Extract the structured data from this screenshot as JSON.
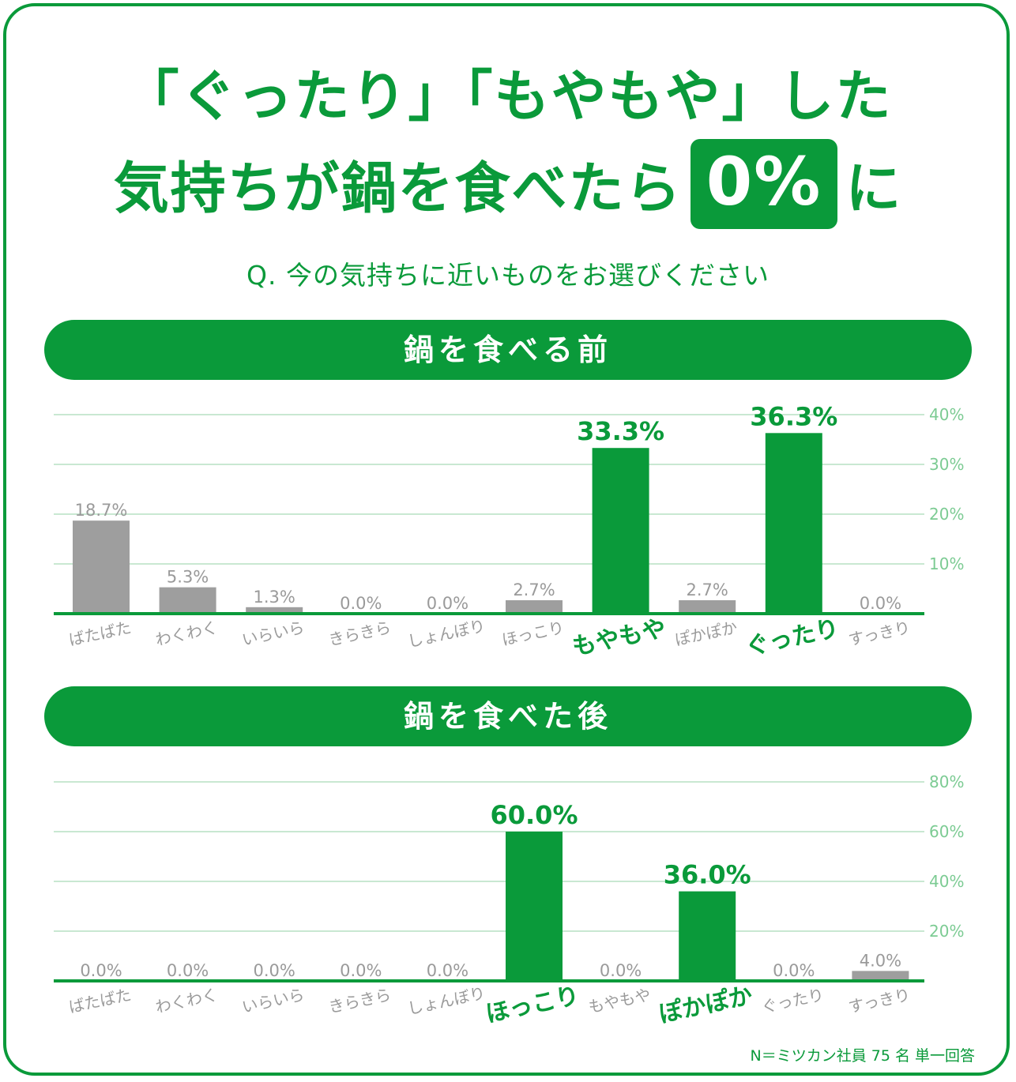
{
  "title": {
    "line1": "「ぐったり」「もやもや」した",
    "line2_pre": "気持ちが鍋を食べたら",
    "line2_highlight": "0%",
    "line2_post": "に"
  },
  "question": "Q. 今の気持ちに近いものをお選びください",
  "footnote": "N＝ミツカン社員 75 名 単一回答",
  "colors": {
    "accent": "#0a9a3a",
    "gray_bar": "#9e9e9e",
    "gray_text": "#9a9a9a",
    "gridline": "#c9e8d2",
    "axis_text": "#7ccb93"
  },
  "chart_data": [
    {
      "type": "bar",
      "title": "鍋を食べる前",
      "categories": [
        "ばたばた",
        "わくわく",
        "いらいら",
        "きらきら",
        "しょんぼり",
        "ほっこり",
        "もやもや",
        "ぽかぽか",
        "ぐったり",
        "すっきり"
      ],
      "values": [
        18.7,
        5.3,
        1.3,
        0.0,
        0.0,
        2.7,
        33.3,
        2.7,
        36.3,
        0.0
      ],
      "value_labels": [
        "18.7%",
        "5.3%",
        "1.3%",
        "0.0%",
        "0.0%",
        "2.7%",
        "33.3%",
        "2.7%",
        "36.3%",
        "0.0%"
      ],
      "highlighted": [
        "もやもや",
        "ぐったり"
      ],
      "ylim": [
        0,
        40
      ],
      "yticks": [
        10,
        20,
        30,
        40
      ],
      "ytick_labels": [
        "10%",
        "20%",
        "30%",
        "40%"
      ],
      "grid": true
    },
    {
      "type": "bar",
      "title": "鍋を食べた後",
      "categories": [
        "ばたばた",
        "わくわく",
        "いらいら",
        "きらきら",
        "しょんぼり",
        "ほっこり",
        "もやもや",
        "ぽかぽか",
        "ぐったり",
        "すっきり"
      ],
      "values": [
        0.0,
        0.0,
        0.0,
        0.0,
        0.0,
        60.0,
        0.0,
        36.0,
        0.0,
        4.0
      ],
      "value_labels": [
        "0.0%",
        "0.0%",
        "0.0%",
        "0.0%",
        "0.0%",
        "60.0%",
        "0.0%",
        "36.0%",
        "0.0%",
        "4.0%"
      ],
      "highlighted": [
        "ほっこり",
        "ぽかぽか"
      ],
      "ylim": [
        0,
        80
      ],
      "yticks": [
        20,
        40,
        60,
        80
      ],
      "ytick_labels": [
        "20%",
        "40%",
        "60%",
        "80%"
      ],
      "grid": true
    }
  ]
}
